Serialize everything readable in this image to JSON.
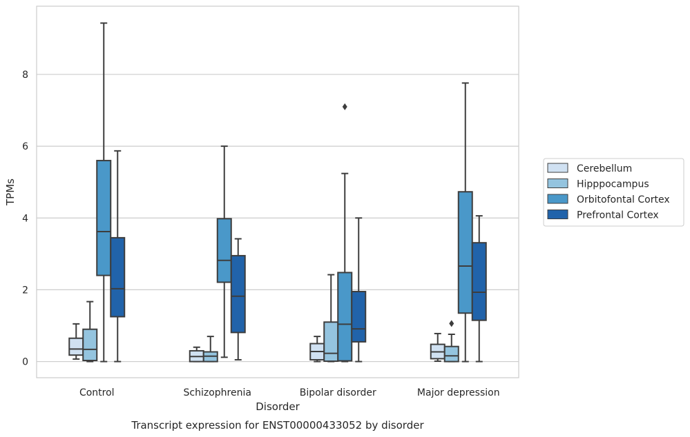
{
  "chart_data": {
    "type": "box",
    "caption": "Transcript expression for ENST00000433052 by disorder",
    "xlabel": "Disorder",
    "ylabel": "TPMs",
    "ylim": [
      -0.45,
      9.9
    ],
    "yticks": [
      0,
      2,
      4,
      6,
      8
    ],
    "grid": "horizontal",
    "legend_position": "right",
    "categories": [
      "Control",
      "Schizophrenia",
      "Bipolar disorder",
      "Major depression"
    ],
    "series": [
      {
        "name": "Cerebellum",
        "color": "#d0e1f2",
        "boxes": [
          {
            "min": 0.07,
            "q1": 0.18,
            "median": 0.35,
            "q3": 0.65,
            "max": 1.05,
            "outliers": []
          },
          {
            "min": 0.0,
            "q1": 0.0,
            "median": 0.14,
            "q3": 0.3,
            "max": 0.4,
            "outliers": []
          },
          {
            "min": 0.0,
            "q1": 0.05,
            "median": 0.28,
            "q3": 0.5,
            "max": 0.7,
            "outliers": []
          },
          {
            "min": 0.01,
            "q1": 0.08,
            "median": 0.27,
            "q3": 0.48,
            "max": 0.78,
            "outliers": []
          }
        ]
      },
      {
        "name": "Hipppocampus",
        "color": "#94c4df",
        "boxes": [
          {
            "min": 0.0,
            "q1": 0.03,
            "median": 0.34,
            "q3": 0.9,
            "max": 1.67,
            "outliers": []
          },
          {
            "min": 0.0,
            "q1": 0.0,
            "median": 0.15,
            "q3": 0.27,
            "max": 0.7,
            "outliers": []
          },
          {
            "min": 0.0,
            "q1": 0.01,
            "median": 0.23,
            "q3": 1.1,
            "max": 2.42,
            "outliers": []
          },
          {
            "min": 0.0,
            "q1": 0.0,
            "median": 0.16,
            "q3": 0.42,
            "max": 0.76,
            "outliers": [
              1.06
            ]
          }
        ]
      },
      {
        "name": "Orbitofontal Cortex",
        "color": "#4a98c9",
        "boxes": [
          {
            "min": 0.0,
            "q1": 2.4,
            "median": 3.62,
            "q3": 5.6,
            "max": 9.43,
            "outliers": []
          },
          {
            "min": 0.12,
            "q1": 2.21,
            "median": 2.82,
            "q3": 3.98,
            "max": 6.0,
            "outliers": []
          },
          {
            "min": 0.0,
            "q1": 0.02,
            "median": 1.04,
            "q3": 2.48,
            "max": 5.24,
            "outliers": [
              7.1
            ]
          },
          {
            "min": 0.0,
            "q1": 1.35,
            "median": 2.66,
            "q3": 4.73,
            "max": 7.76,
            "outliers": []
          }
        ]
      },
      {
        "name": "Prefrontal Cortex",
        "color": "#2163aa",
        "boxes": [
          {
            "min": 0.0,
            "q1": 1.25,
            "median": 2.03,
            "q3": 3.45,
            "max": 5.87,
            "outliers": []
          },
          {
            "min": 0.05,
            "q1": 0.81,
            "median": 1.82,
            "q3": 2.95,
            "max": 3.42,
            "outliers": []
          },
          {
            "min": 0.0,
            "q1": 0.55,
            "median": 0.91,
            "q3": 1.95,
            "max": 4.0,
            "outliers": []
          },
          {
            "min": 0.0,
            "q1": 1.15,
            "median": 1.93,
            "q3": 3.31,
            "max": 4.06,
            "outliers": []
          }
        ]
      }
    ]
  }
}
